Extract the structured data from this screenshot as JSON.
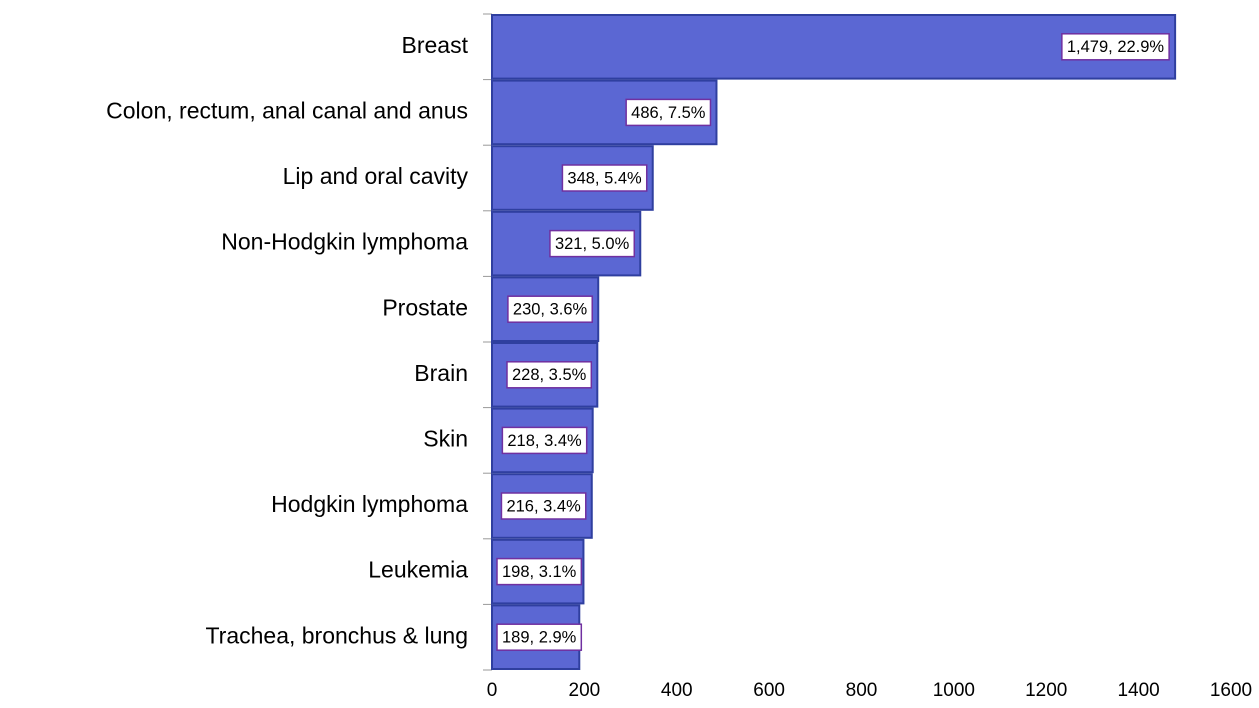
{
  "chart_data": {
    "type": "bar",
    "orientation": "horizontal",
    "categories": [
      "Breast",
      "Colon, rectum, anal canal and anus",
      "Lip and oral cavity",
      "Non-Hodgkin lymphoma",
      "Prostate",
      "Brain",
      "Skin",
      "Hodgkin lymphoma",
      "Leukemia",
      "Trachea, bronchus & lung"
    ],
    "values": [
      1479,
      486,
      348,
      321,
      230,
      228,
      218,
      216,
      198,
      189
    ],
    "value_labels": [
      "1,479, 22.9%",
      "486, 7.5%",
      "348, 5.4%",
      "321, 5.0%",
      "230, 3.6%",
      "228, 3.5%",
      "218, 3.4%",
      "216, 3.4%",
      "198, 3.1%",
      "189, 2.9%"
    ],
    "color": "#5b67d3",
    "xlim": [
      0,
      1600
    ],
    "xticks": [
      0,
      200,
      400,
      600,
      800,
      1000,
      1200,
      1400,
      1600
    ],
    "grid": false
  }
}
